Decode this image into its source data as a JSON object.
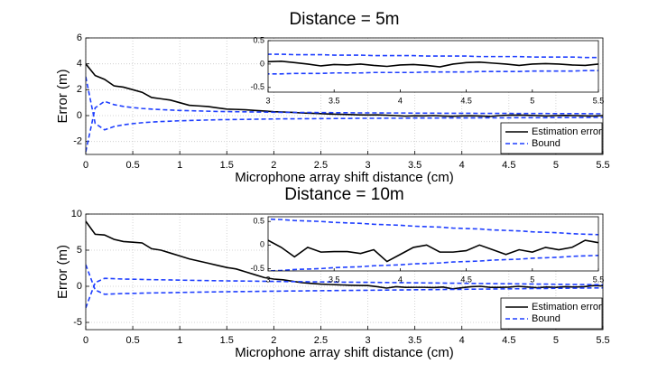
{
  "chart_data": [
    {
      "type": "line",
      "title": "Distance = 5m",
      "xlabel": "Microphone array shift distance (cm)",
      "ylabel": "Error (m)",
      "x": [
        0,
        0.1,
        0.2,
        0.3,
        0.4,
        0.5,
        0.6,
        0.7,
        0.8,
        0.9,
        1.0,
        1.1,
        1.2,
        1.3,
        1.4,
        1.5,
        1.6,
        1.7,
        1.8,
        1.9,
        2.0,
        2.1,
        2.2,
        2.3,
        2.4,
        2.5,
        2.6,
        2.7,
        2.8,
        2.9,
        3.0,
        3.1,
        3.2,
        3.3,
        3.4,
        3.5,
        3.6,
        3.7,
        3.8,
        3.9,
        4.0,
        4.1,
        4.2,
        4.3,
        4.4,
        4.5,
        4.6,
        4.7,
        4.8,
        4.9,
        5.0,
        5.1,
        5.2,
        5.3,
        5.4,
        5.5
      ],
      "xlim": [
        0,
        5.5
      ],
      "xticks": [
        0,
        0.5,
        1,
        1.5,
        2,
        2.5,
        3,
        3.5,
        4,
        4.5,
        5,
        5.5
      ],
      "ylim": [
        -3,
        6
      ],
      "yticks": [
        -2,
        0,
        2,
        4,
        6
      ],
      "grid": true,
      "legend": "lower right",
      "series": [
        {
          "name": "Estimation error",
          "color": "#000000",
          "style": "solid",
          "values": [
            4,
            3.1,
            2.8,
            2.3,
            2.2,
            2.0,
            1.8,
            1.4,
            1.3,
            1.2,
            1.0,
            0.8,
            0.75,
            0.7,
            0.6,
            0.5,
            0.48,
            0.45,
            0.4,
            0.35,
            0.3,
            0.28,
            0.25,
            0.2,
            0.18,
            0.15,
            0.12,
            0.1,
            0.08,
            0.06,
            0.05,
            0.06,
            0.03,
            0,
            -0.04,
            -0.01,
            -0.02,
            0,
            -0.03,
            -0.05,
            -0.02,
            -0.01,
            -0.03,
            -0.06,
            0,
            0.03,
            0.04,
            0.02,
            0,
            -0.03,
            0,
            0.01,
            0,
            -0.02,
            -0.03,
            0
          ]
        },
        {
          "name": "Bound",
          "color": "#1f3fff",
          "style": "dashed",
          "values": [
            -2.8,
            0.6,
            1.1,
            0.85,
            0.71,
            0.62,
            0.55,
            0.5,
            0.46,
            0.43,
            0.4,
            0.38,
            0.36,
            0.34,
            0.32,
            0.31,
            0.3,
            0.29,
            0.28,
            0.27,
            0.26,
            0.25,
            0.25,
            0.24,
            0.24,
            0.23,
            0.23,
            0.22,
            0.22,
            0.21,
            0.21,
            0.21,
            0.2,
            0.2,
            0.2,
            0.19,
            0.19,
            0.19,
            0.18,
            0.18,
            0.18,
            0.18,
            0.17,
            0.17,
            0.17,
            0.17,
            0.16,
            0.16,
            0.16,
            0.16,
            0.15,
            0.15,
            0.15,
            0.15,
            0.14,
            0.14
          ]
        },
        {
          "color": "#1f3fff",
          "style": "dashed",
          "values": [
            3,
            -0.6,
            -1.1,
            -0.85,
            -0.71,
            -0.62,
            -0.55,
            -0.5,
            -0.46,
            -0.43,
            -0.4,
            -0.38,
            -0.36,
            -0.34,
            -0.32,
            -0.31,
            -0.3,
            -0.29,
            -0.28,
            -0.27,
            -0.26,
            -0.25,
            -0.25,
            -0.24,
            -0.24,
            -0.23,
            -0.23,
            -0.22,
            -0.22,
            -0.21,
            -0.21,
            -0.21,
            -0.2,
            -0.2,
            -0.2,
            -0.19,
            -0.19,
            -0.19,
            -0.18,
            -0.18,
            -0.18,
            -0.18,
            -0.17,
            -0.17,
            -0.17,
            -0.17,
            -0.16,
            -0.16,
            -0.16,
            -0.16,
            -0.15,
            -0.15,
            -0.15,
            -0.15,
            -0.14,
            -0.14
          ]
        }
      ],
      "inset": {
        "xlim": [
          3,
          5.5
        ],
        "xticks": [
          3,
          3.5,
          4,
          4.5,
          5,
          5.5
        ],
        "ylim": [
          -0.6,
          0.5
        ],
        "yticks": [
          -0.5,
          0,
          0.5
        ]
      }
    },
    {
      "type": "line",
      "title": "Distance = 10m",
      "xlabel": "Microphone array shift distance (cm)",
      "ylabel": "Error (m)",
      "x": [
        0,
        0.1,
        0.2,
        0.3,
        0.4,
        0.5,
        0.6,
        0.7,
        0.8,
        0.9,
        1.0,
        1.1,
        1.2,
        1.3,
        1.4,
        1.5,
        1.6,
        1.7,
        1.8,
        1.9,
        2.0,
        2.1,
        2.2,
        2.3,
        2.4,
        2.5,
        2.6,
        2.7,
        2.8,
        2.9,
        3.0,
        3.1,
        3.2,
        3.3,
        3.4,
        3.5,
        3.6,
        3.7,
        3.8,
        3.9,
        4.0,
        4.1,
        4.2,
        4.3,
        4.4,
        4.5,
        4.6,
        4.7,
        4.8,
        4.9,
        5.0,
        5.1,
        5.2,
        5.3,
        5.4,
        5.5
      ],
      "xlim": [
        0,
        5.5
      ],
      "xticks": [
        0,
        0.5,
        1,
        1.5,
        2,
        2.5,
        3,
        3.5,
        4,
        4.5,
        5,
        5.5
      ],
      "ylim": [
        -6,
        10
      ],
      "yticks": [
        -5,
        0,
        5,
        10
      ],
      "grid": true,
      "legend": "lower right",
      "series": [
        {
          "name": "Estimation error",
          "color": "#000000",
          "style": "solid",
          "values": [
            9,
            7.2,
            7.1,
            6.5,
            6.2,
            6.1,
            6.0,
            5.2,
            5.0,
            4.6,
            4.2,
            3.8,
            3.5,
            3.2,
            2.9,
            2.6,
            2.4,
            2.0,
            1.6,
            1.2,
            1.0,
            0.9,
            0.7,
            0.5,
            0.4,
            0.3,
            0.25,
            0.2,
            0.15,
            0.12,
            0.1,
            -0.05,
            -0.25,
            -0.05,
            -0.15,
            -0.14,
            -0.14,
            -0.18,
            -0.1,
            -0.35,
            -0.2,
            -0.05,
            0,
            -0.15,
            -0.15,
            -0.12,
            0,
            -0.1,
            -0.2,
            -0.1,
            -0.15,
            -0.05,
            -0.1,
            -0.05,
            0.1,
            0.05
          ]
        },
        {
          "name": "Bound",
          "color": "#1f3fff",
          "style": "dashed",
          "values": [
            -3,
            0.5,
            1.1,
            1.05,
            1.0,
            0.98,
            0.95,
            0.92,
            0.9,
            0.88,
            0.85,
            0.83,
            0.81,
            0.79,
            0.77,
            0.75,
            0.74,
            0.72,
            0.71,
            0.69,
            0.68,
            0.66,
            0.65,
            0.64,
            0.62,
            0.61,
            0.6,
            0.58,
            0.57,
            0.56,
            0.55,
            0.54,
            0.52,
            0.51,
            0.5,
            0.48,
            0.47,
            0.46,
            0.44,
            0.43,
            0.42,
            0.4,
            0.39,
            0.38,
            0.36,
            0.35,
            0.34,
            0.32,
            0.31,
            0.3,
            0.28,
            0.27,
            0.26,
            0.24,
            0.23,
            0.22
          ]
        },
        {
          "color": "#1f3fff",
          "style": "dashed",
          "values": [
            3,
            -0.5,
            -1.1,
            -1.05,
            -1.0,
            -0.98,
            -0.95,
            -0.92,
            -0.9,
            -0.88,
            -0.85,
            -0.83,
            -0.81,
            -0.79,
            -0.77,
            -0.75,
            -0.74,
            -0.72,
            -0.71,
            -0.69,
            -0.68,
            -0.66,
            -0.65,
            -0.64,
            -0.62,
            -0.61,
            -0.6,
            -0.58,
            -0.57,
            -0.56,
            -0.55,
            -0.54,
            -0.52,
            -0.51,
            -0.5,
            -0.48,
            -0.47,
            -0.46,
            -0.44,
            -0.43,
            -0.42,
            -0.4,
            -0.39,
            -0.38,
            -0.36,
            -0.35,
            -0.34,
            -0.32,
            -0.31,
            -0.3,
            -0.28,
            -0.27,
            -0.26,
            -0.24,
            -0.23,
            -0.22
          ]
        }
      ],
      "inset": {
        "xlim": [
          3,
          5.5
        ],
        "xticks": [
          3,
          3.5,
          4,
          4.5,
          5,
          5.5
        ],
        "ylim": [
          -0.55,
          0.6
        ],
        "yticks": [
          -0.5,
          0,
          0.5
        ]
      }
    }
  ]
}
